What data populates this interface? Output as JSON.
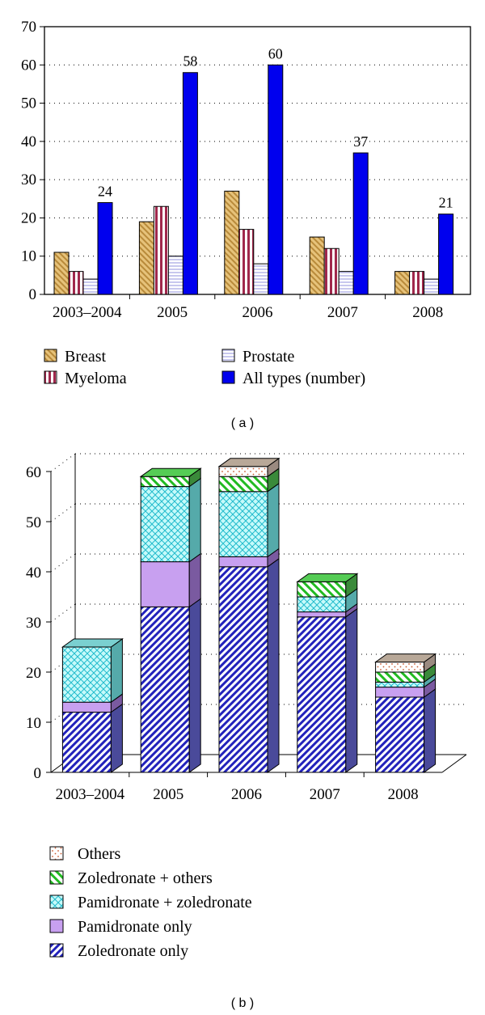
{
  "chart_data": [
    {
      "type": "bar",
      "panel_label": "( a )",
      "categories": [
        "2003–2004",
        "2005",
        "2006",
        "2007",
        "2008"
      ],
      "series": [
        {
          "name": "Breast",
          "values": [
            11,
            19,
            27,
            15,
            6
          ],
          "color": "#d4a85a"
        },
        {
          "name": "Myeloma",
          "values": [
            6,
            23,
            17,
            12,
            6
          ],
          "color": "#a0284c"
        },
        {
          "name": "Prostate",
          "values": [
            4,
            10,
            8,
            6,
            4
          ],
          "color": "#c8c8ee"
        },
        {
          "name": "All types (number)",
          "values": [
            24,
            58,
            60,
            37,
            21
          ],
          "color": "#0000ee"
        }
      ],
      "data_labels": [
        "24",
        "58",
        "60",
        "37",
        "21"
      ],
      "y_ticks": [
        "0",
        "10",
        "20",
        "30",
        "40",
        "50",
        "60",
        "70"
      ],
      "ylim": [
        0,
        70
      ],
      "grid": "horizontal dotted",
      "legend_position": "bottom",
      "title": "",
      "xlabel": "",
      "ylabel": ""
    },
    {
      "type": "bar",
      "stacked": true,
      "three_d": true,
      "panel_label": "( b )",
      "categories": [
        "2003–2004",
        "2005",
        "2006",
        "2007",
        "2008"
      ],
      "series": [
        {
          "name": "Zoledronate only",
          "values": [
            12,
            33,
            41,
            31,
            15
          ],
          "color": "#2222bb"
        },
        {
          "name": "Pamidronate only",
          "values": [
            2,
            9,
            2,
            1,
            2
          ],
          "color": "#c8a0f0"
        },
        {
          "name": "Pamidronate + zoledronate",
          "values": [
            11,
            15,
            13,
            3,
            1
          ],
          "color": "#a8f4f4"
        },
        {
          "name": "Zoledronate + others",
          "values": [
            0,
            2,
            3,
            3,
            2
          ],
          "color": "#33cc33"
        },
        {
          "name": "Others",
          "values": [
            0,
            0,
            2,
            0,
            2
          ],
          "color": "#c87850"
        }
      ],
      "legend_order": [
        "Others",
        "Zoledronate + others",
        "Pamidronate + zoledronate",
        "Pamidronate only",
        "Zoledronate only"
      ],
      "y_ticks": [
        "0",
        "10",
        "20",
        "30",
        "40",
        "50",
        "60"
      ],
      "ylim": [
        0,
        60
      ],
      "grid": "horizontal dotted",
      "legend_position": "bottom",
      "title": "",
      "xlabel": "",
      "ylabel": ""
    }
  ]
}
